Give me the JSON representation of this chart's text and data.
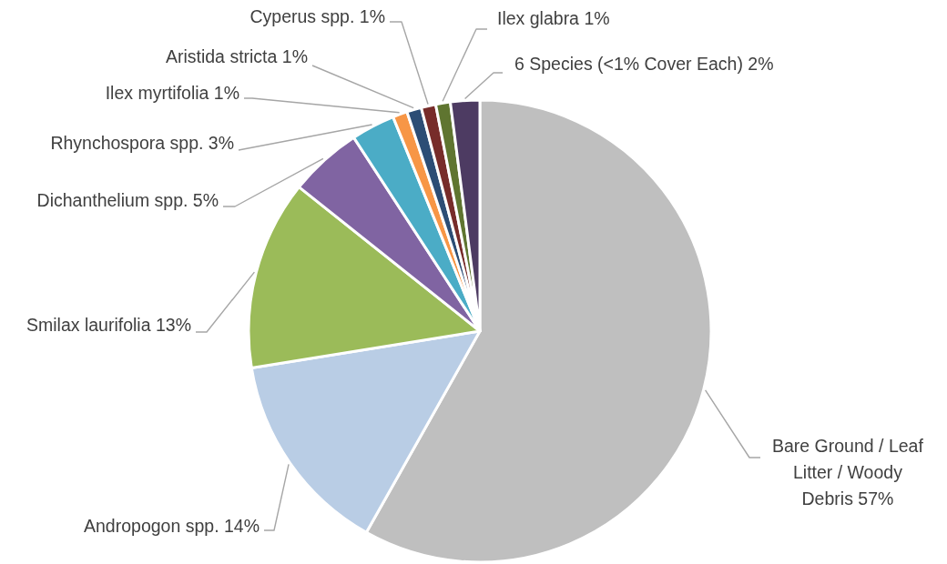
{
  "chart_data": {
    "type": "pie",
    "categories": [
      "Bare Ground / Leaf Litter / Woody Debris",
      "Andropogon spp.",
      "Smilax laurifolia",
      "Dichanthelium spp.",
      "Rhynchospora spp.",
      "Ilex myrtifolia",
      "Aristida stricta",
      "Cyperus spp.",
      "Ilex glabra",
      "6 Species (<1% Cover Each)"
    ],
    "values": [
      57,
      14,
      13,
      5,
      3,
      1,
      1,
      1,
      1,
      2
    ],
    "value_labels": [
      "57%",
      "14%",
      "13%",
      "5%",
      "3%",
      "1%",
      "1%",
      "1%",
      "1%",
      "2%"
    ],
    "colors": [
      "#bfbfbf",
      "#b9cde5",
      "#9bbb59",
      "#8064a2",
      "#4bacc6",
      "#f79646",
      "#2c4d75",
      "#772c2a",
      "#5f7530",
      "#4d3b62"
    ]
  }
}
